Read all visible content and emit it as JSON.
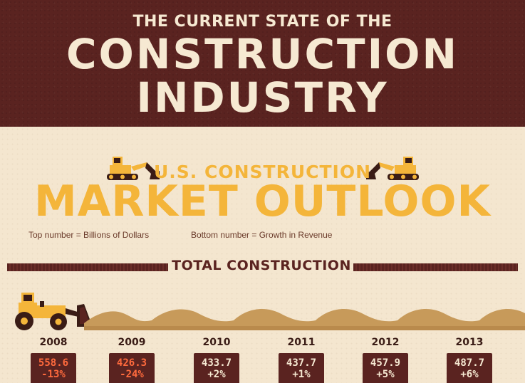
{
  "header": {
    "subtitle": "THE CURRENT STATE OF THE",
    "title_line1": "CONSTRUCTION",
    "title_line2": "INDUSTRY"
  },
  "outlook": {
    "kicker": "U.S. CONSTRUCTION",
    "title": "MARKET OUTLOOK",
    "legend_top": "Top number = Billions of Dollars",
    "legend_bottom": "Bottom number = Growth in Revenue"
  },
  "section": {
    "title": "TOTAL CONSTRUCTION"
  },
  "years": [
    {
      "year": "2008",
      "value": "558.6",
      "growth": "-13%",
      "color": "#ff6a3d"
    },
    {
      "year": "2009",
      "value": "426.3",
      "growth": "-24%",
      "color": "#ff6a3d"
    },
    {
      "year": "2010",
      "value": "433.7",
      "growth": "+2%",
      "color": "#f6e9d2"
    },
    {
      "year": "2011",
      "value": "437.7",
      "growth": "+1%",
      "color": "#f6e9d2"
    },
    {
      "year": "2012",
      "value": "457.9",
      "growth": "+5%",
      "color": "#f6e9d2"
    },
    {
      "year": "2013",
      "value": "487.7",
      "growth": "+6%",
      "color": "#f6e9d2"
    }
  ],
  "icons": {
    "dozer": "bulldozer-icon",
    "excavator": "excavator-icon",
    "dirt": "dirt-mounds-icon"
  },
  "colors": {
    "header_bg": "#5a2320",
    "accent": "#f4b53a",
    "panel_bg": "#f4e6cf",
    "negative": "#ff6a3d"
  }
}
